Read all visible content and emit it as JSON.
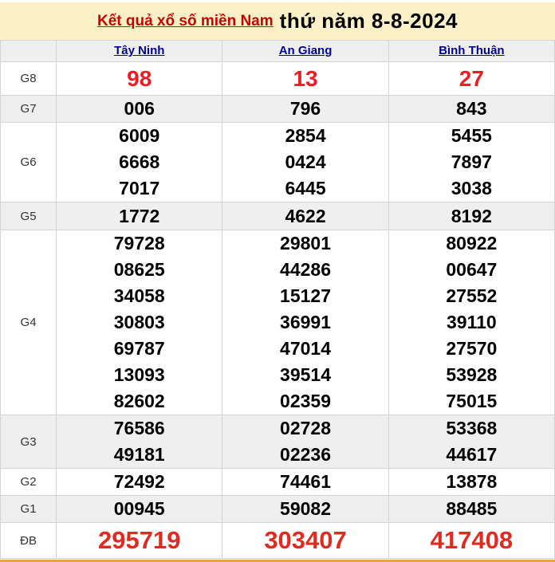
{
  "title": {
    "link_text": "Kết quả xổ số miền Nam",
    "rest_text": "thứ năm 8-8-2024"
  },
  "table": {
    "columns": [
      "Tây Ninh",
      "An Giang",
      "Bình Thuận"
    ],
    "rows": [
      {
        "label": "G8",
        "style": "big",
        "shade": false,
        "values": [
          [
            "98"
          ],
          [
            "13"
          ],
          [
            "27"
          ]
        ]
      },
      {
        "label": "G7",
        "style": "norm",
        "shade": true,
        "values": [
          [
            "006"
          ],
          [
            "796"
          ],
          [
            "843"
          ]
        ]
      },
      {
        "label": "G6",
        "style": "norm",
        "shade": false,
        "values": [
          [
            "6009",
            "6668",
            "7017"
          ],
          [
            "2854",
            "0424",
            "6445"
          ],
          [
            "5455",
            "7897",
            "3038"
          ]
        ]
      },
      {
        "label": "G5",
        "style": "g5",
        "shade": true,
        "values": [
          [
            "1772"
          ],
          [
            "4622"
          ],
          [
            "8192"
          ]
        ]
      },
      {
        "label": "G4",
        "style": "norm",
        "shade": false,
        "values": [
          [
            "79728",
            "08625",
            "34058",
            "30803",
            "69787",
            "13093",
            "82602"
          ],
          [
            "29801",
            "44286",
            "15127",
            "36991",
            "47014",
            "39514",
            "02359"
          ],
          [
            "80922",
            "00647",
            "27552",
            "39110",
            "27570",
            "53928",
            "75015"
          ]
        ]
      },
      {
        "label": "G3",
        "style": "norm",
        "shade": true,
        "values": [
          [
            "76586",
            "49181"
          ],
          [
            "02728",
            "02236"
          ],
          [
            "53368",
            "44617"
          ]
        ]
      },
      {
        "label": "G2",
        "style": "norm",
        "shade": false,
        "values": [
          [
            "72492"
          ],
          [
            "74461"
          ],
          [
            "13878"
          ]
        ]
      },
      {
        "label": "G1",
        "style": "norm",
        "shade": true,
        "values": [
          [
            "00945"
          ],
          [
            "59082"
          ],
          [
            "88485"
          ]
        ]
      },
      {
        "label": "ĐB",
        "style": "huge",
        "shade": false,
        "values": [
          [
            "295719"
          ],
          [
            "303407"
          ],
          [
            "417408"
          ]
        ]
      }
    ]
  },
  "colors": {
    "banner_bg": "#FBF0C8",
    "title_red": "#CC0000",
    "result_red": "#EE1C25",
    "jackpot_red": "#E22B20",
    "link_blue": "#000099",
    "shade_bg": "#EFEFEF",
    "border_gray": "#D4D4D4",
    "orange_bar": "#F0A23C"
  }
}
